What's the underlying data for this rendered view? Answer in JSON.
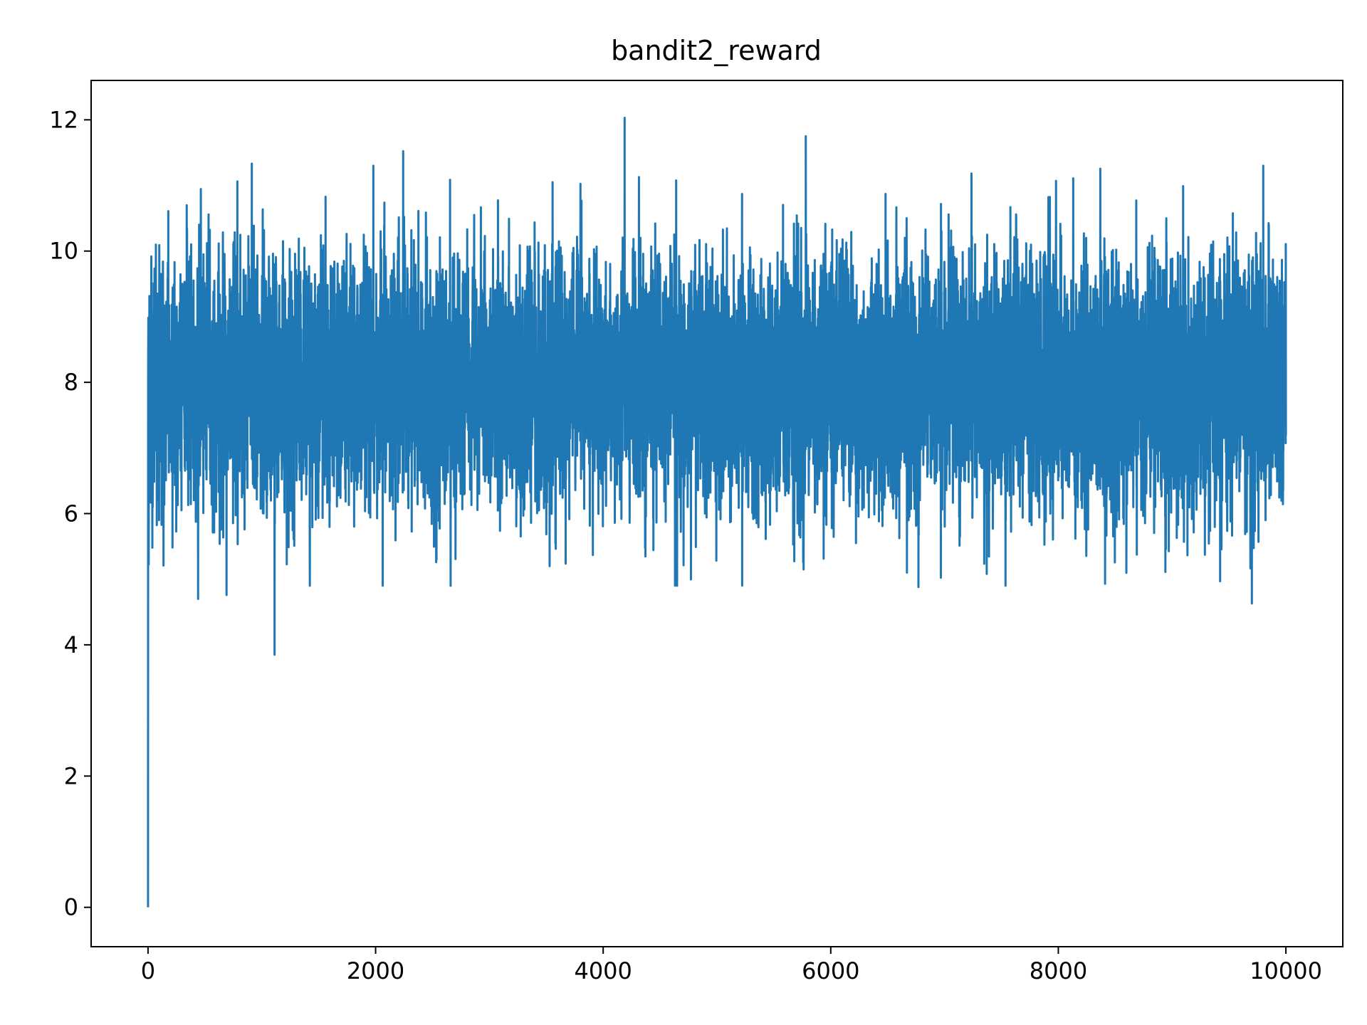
{
  "chart_data": {
    "type": "line",
    "title": "bandit2_reward",
    "xlabel": "",
    "ylabel": "",
    "xlim": [
      -500,
      10500
    ],
    "ylim": [
      -0.6,
      12.6
    ],
    "x_ticks": [
      0,
      2000,
      4000,
      6000,
      8000,
      10000
    ],
    "y_ticks": [
      0,
      2,
      4,
      6,
      8,
      10,
      12
    ],
    "x_tick_labels": [
      "0",
      "2000",
      "4000",
      "6000",
      "8000",
      "10000"
    ],
    "y_tick_labels": [
      "0",
      "2",
      "4",
      "6",
      "8",
      "10",
      "12"
    ],
    "grid": false,
    "legend": "none",
    "line_color": "#1f77b4",
    "series": [
      {
        "x_start": 0,
        "x_end": 10000,
        "points_count": 10000,
        "first_value": 0.0,
        "typical_center": 8.0,
        "typical_band": [
          6.5,
          10.0
        ],
        "extremes": [
          {
            "x": 1112,
            "y": 3.85
          },
          {
            "x": 4188,
            "y": 12.03
          },
          {
            "x": 5780,
            "y": 11.75
          },
          {
            "x": 9700,
            "y": 4.63
          },
          {
            "x": 6770,
            "y": 4.88
          },
          {
            "x": 440,
            "y": 4.7
          },
          {
            "x": 690,
            "y": 4.76
          },
          {
            "x": 8410,
            "y": 4.93
          },
          {
            "x": 1980,
            "y": 11.3
          },
          {
            "x": 9800,
            "y": 11.3
          }
        ]
      }
    ]
  }
}
